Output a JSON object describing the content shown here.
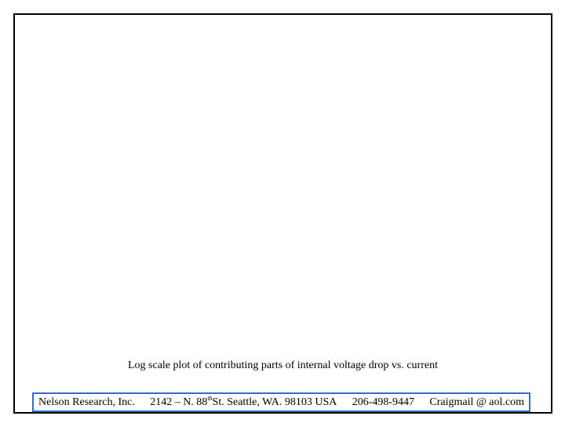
{
  "slide": {
    "caption": "Log scale plot of contributing parts of internal voltage drop vs. current"
  },
  "footer": {
    "company": "Nelson Research, Inc.",
    "address_prefix": "2142 – N. 88",
    "address_sup": "th",
    "address_suffix": " St. Seattle, WA. 98103  USA",
    "phone": "206-498-9447",
    "email": "Craigmail @ aol.com",
    "border_color": "#2e6fc9"
  }
}
